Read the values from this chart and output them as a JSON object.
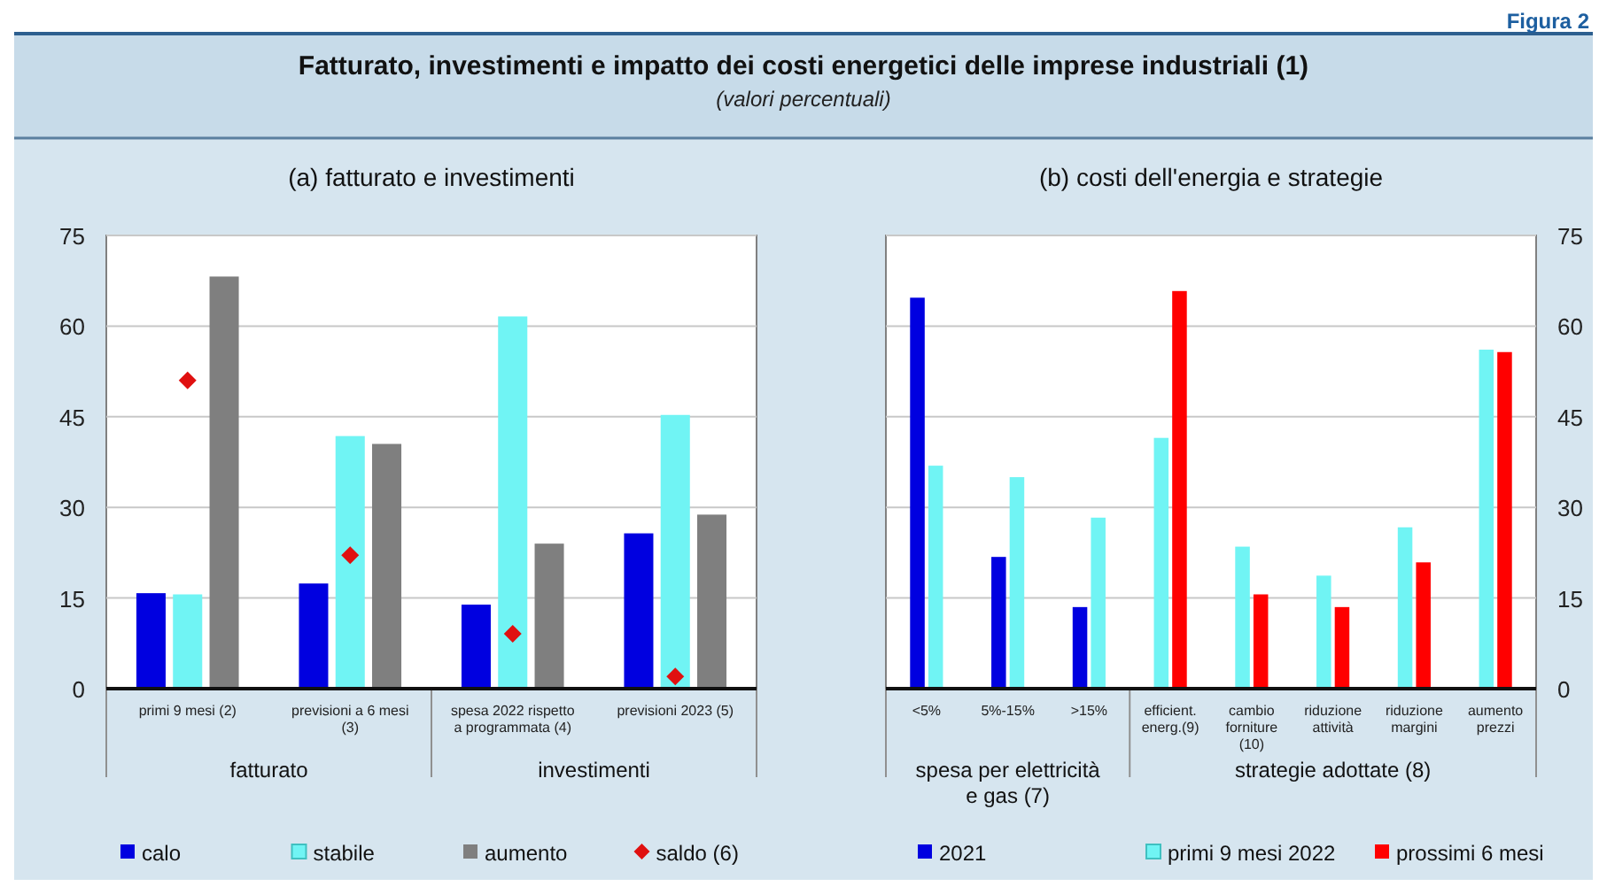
{
  "chart_data": [
    {
      "type": "bar",
      "title": "Fatturato, investimenti e impatto dei costi energetici delle imprese industriali (1)",
      "subtitle": "(valori percentuali)",
      "annotations": [
        "Figura 2",
        "(a) fatturato e investimenti",
        "fatturato",
        "investimenti"
      ],
      "categories": [
        "primi 9 mesi (2)",
        "previsioni a 6 mesi\n(3)",
        "spesa 2022 rispetto\na programmata (4)",
        "previsioni 2023 (5)"
      ],
      "series": [
        {
          "name": "calo",
          "color": "#0000e0",
          "values": [
            15.8,
            17.4,
            13.9,
            25.7
          ]
        },
        {
          "name": "stabile",
          "color": "#70f4f4",
          "values": [
            15.6,
            41.8,
            61.6,
            45.3
          ]
        },
        {
          "name": "aumento",
          "color": "#7f7f7f",
          "values": [
            68.2,
            40.5,
            24.0,
            28.8
          ]
        },
        {
          "name": "saldo (6)",
          "type": "scatter",
          "marker": "diamond",
          "color": "#e01010",
          "values": [
            51.0,
            22.1,
            9.1,
            2.0
          ]
        }
      ],
      "ylim": [
        0,
        75
      ],
      "yticks": [
        0,
        15,
        30,
        45,
        60,
        75
      ],
      "grid": "y",
      "legend": "bottom"
    },
    {
      "type": "bar",
      "title": "(b) costi dell'energia e strategie",
      "annotations": [
        "spesa per elettricità\ne gas (7)",
        "strategie adottate (8)"
      ],
      "categories": [
        "<5%",
        "5%-15%",
        ">15%",
        "efficient.\nenerg.(9)",
        "cambio\nforniture\n(10)",
        "riduzione\nattività",
        "riduzione\nmargini",
        "aumento\nprezzi"
      ],
      "series": [
        {
          "name": "2021",
          "color": "#0000e0",
          "values": [
            64.7,
            21.8,
            13.5,
            null,
            null,
            null,
            null,
            null
          ]
        },
        {
          "name": "primi 9 mesi 2022",
          "color": "#70f4f4",
          "values": [
            36.9,
            35.0,
            28.3,
            41.5,
            23.5,
            18.7,
            26.7,
            56.1
          ]
        },
        {
          "name": "prossimi 6 mesi",
          "color": "#ff0000",
          "values": [
            null,
            null,
            null,
            65.8,
            15.6,
            13.5,
            20.9,
            55.7
          ]
        }
      ],
      "ylim": [
        0,
        75
      ],
      "yticks": [
        0,
        15,
        30,
        45,
        60,
        75
      ],
      "grid": "y",
      "legend": "bottom"
    }
  ]
}
